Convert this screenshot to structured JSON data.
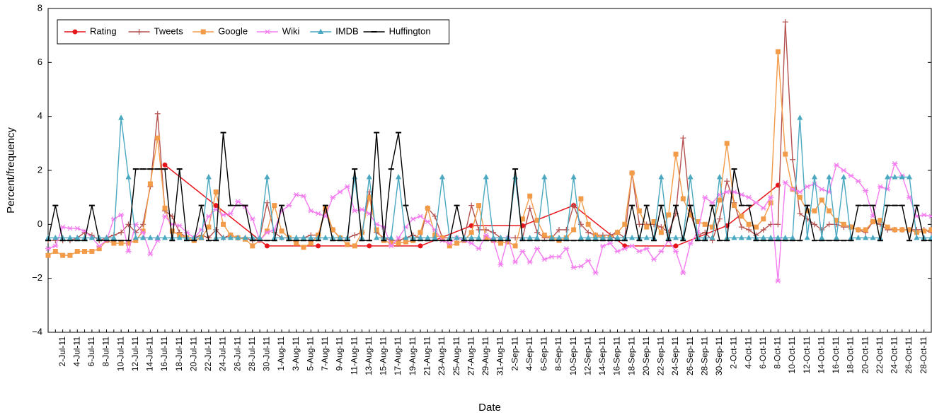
{
  "chart_data": {
    "type": "line",
    "x_label": "Date",
    "y_label": "Percent/frequency",
    "categories": [
      null,
      null,
      "2-Jul-11",
      null,
      "4-Jul-11",
      null,
      "6-Jul-11",
      null,
      "8-Jul-11",
      null,
      "10-Jul-11",
      null,
      "12-Jul-11",
      null,
      "14-Jul-11",
      null,
      "16-Jul-11",
      null,
      "18-Jul-11",
      null,
      "20-Jul-11",
      null,
      "22-Jul-11",
      null,
      "24-Jul-11",
      null,
      "26-Jul-11",
      null,
      "28-Jul-11",
      null,
      "30-Jul-11",
      null,
      "1-Aug-11",
      null,
      "3-Aug-11",
      null,
      "5-Aug-11",
      null,
      "7-Aug-11",
      null,
      "9-Aug-11",
      null,
      "11-Aug-11",
      null,
      "13-Aug-11",
      null,
      "15-Aug-11",
      null,
      "17-Aug-11",
      null,
      "19-Aug-11",
      null,
      "21-Aug-11",
      null,
      "23-Aug-11",
      null,
      "25-Aug-11",
      null,
      "27-Aug-11",
      null,
      "29-Aug-11",
      null,
      "31-Aug-11",
      null,
      "2-Sep-11",
      null,
      "4-Sep-11",
      null,
      "6-Sep-11",
      null,
      "8-Sep-11",
      null,
      "10-Sep-11",
      null,
      "12-Sep-11",
      null,
      "14-Sep-11",
      null,
      "16-Sep-11",
      null,
      "18-Sep-11",
      null,
      "20-Sep-11",
      null,
      "22-Sep-11",
      null,
      "24-Sep-11",
      null,
      "26-Sep-11",
      null,
      "28-Sep-11",
      null,
      "30-Sep-11",
      null,
      "2-Oct-11",
      null,
      "4-Oct-11",
      null,
      "6-Oct-11",
      null,
      "8-Oct-11",
      null,
      "10-Oct-11",
      null,
      "12-Oct-11",
      null,
      "14-Oct-11",
      null,
      "16-Oct-11",
      null,
      "18-Oct-11",
      null,
      "20-Oct-11",
      null,
      "22-Oct-11",
      null,
      "24-Oct-11",
      null,
      "26-Oct-11",
      null,
      "28-Oct-11",
      null
    ],
    "series": [
      {
        "name": "Rating",
        "color": "#e8141b",
        "marker": "circle",
        "x": [
          "16-Jul-11",
          "23-Jul-11",
          "30-Jul-11",
          "6-Aug-11",
          "13-Aug-11",
          "20-Aug-11",
          "27-Aug-11",
          "3-Sep-11",
          "10-Sep-11",
          "17-Sep-11",
          "24-Sep-11",
          "1-Oct-11",
          "8-Oct-11"
        ],
        "values": [
          2.2,
          0.7,
          -0.8,
          -0.8,
          -0.8,
          -0.8,
          -0.05,
          -0.05,
          0.7,
          -0.8,
          -0.8,
          -0.05,
          1.45
        ]
      },
      {
        "name": "Tweets",
        "color": "#b5524f",
        "marker": "plus",
        "values": [
          -0.6,
          -0.6,
          -0.6,
          -0.6,
          -0.5,
          -0.3,
          -0.4,
          -0.6,
          -0.5,
          -0.4,
          -0.3,
          0.0,
          -0.3,
          0.0,
          1.4,
          4.1,
          0.5,
          0.3,
          -0.3,
          -0.5,
          -0.5,
          -0.4,
          -0.5,
          -0.2,
          -0.5,
          -0.4,
          -0.5,
          -0.5,
          -0.6,
          -0.5,
          0.8,
          -0.3,
          -0.5,
          -0.5,
          -0.5,
          -0.5,
          -0.4,
          -0.4,
          0.5,
          -0.2,
          -0.5,
          -0.5,
          -0.4,
          -0.3,
          1.2,
          -0.3,
          -0.5,
          -0.6,
          -0.6,
          -0.5,
          -0.4,
          -0.5,
          0.6,
          0.3,
          -0.5,
          -0.5,
          -0.5,
          -0.5,
          0.7,
          -0.2,
          -0.2,
          -0.3,
          -0.5,
          -0.5,
          -0.5,
          -0.5,
          0.6,
          -0.3,
          -0.5,
          -0.5,
          -0.2,
          -0.2,
          0.7,
          0.0,
          -0.3,
          -0.4,
          -0.4,
          -0.4,
          -0.3,
          -0.5,
          1.9,
          0.0,
          0.0,
          0.0,
          -0.1,
          -0.3,
          0.4,
          3.2,
          0.4,
          -0.4,
          -0.3,
          -0.6,
          0.2,
          1.6,
          0.8,
          -0.1,
          -0.2,
          -0.4,
          -0.2,
          0.0,
          0.0,
          7.5,
          2.4,
          0.4,
          0.2,
          0.0,
          -0.2,
          0.0,
          0.0,
          -0.1,
          -0.1,
          -0.2,
          -0.3,
          0.1,
          0.0,
          -0.2,
          -0.2,
          -0.2,
          -0.2,
          -0.2,
          -0.2,
          -0.3
        ]
      },
      {
        "name": "Google",
        "color": "#f29b49",
        "marker": "square",
        "values": [
          -1.15,
          -1.0,
          -1.15,
          -1.15,
          -1.0,
          -1.0,
          -1.0,
          -0.9,
          -0.6,
          -0.7,
          -0.7,
          -0.7,
          -0.6,
          -0.25,
          1.5,
          3.2,
          0.6,
          -0.25,
          -0.4,
          -0.5,
          -0.6,
          -0.5,
          -0.1,
          1.2,
          0.0,
          -0.4,
          -0.5,
          -0.55,
          -0.8,
          -0.6,
          -0.25,
          0.7,
          -0.25,
          -0.5,
          -0.7,
          -0.85,
          -0.7,
          -0.4,
          0.6,
          -0.2,
          -0.5,
          -0.75,
          -0.8,
          -0.3,
          1.0,
          -0.2,
          -0.6,
          -0.7,
          -0.7,
          -0.65,
          -0.6,
          -0.3,
          0.6,
          -0.4,
          -0.5,
          -0.8,
          -0.7,
          -0.6,
          -0.3,
          0.7,
          -0.5,
          -0.6,
          -0.7,
          -0.65,
          -0.8,
          0.2,
          1.05,
          0.15,
          -0.4,
          -0.5,
          -0.6,
          -0.5,
          -0.2,
          0.95,
          0.0,
          -0.4,
          -0.5,
          -0.5,
          -0.3,
          0.0,
          1.9,
          0.5,
          -0.1,
          0.1,
          -0.3,
          0.35,
          2.6,
          0.95,
          0.35,
          0.1,
          0.0,
          -0.1,
          0.9,
          3.0,
          0.7,
          0.3,
          0.0,
          -0.1,
          0.2,
          0.8,
          6.4,
          2.6,
          1.3,
          1.0,
          0.5,
          0.5,
          0.9,
          0.5,
          0.15,
          0.0,
          -0.1,
          -0.2,
          -0.2,
          0.1,
          0.15,
          -0.1,
          -0.2,
          -0.2,
          -0.2,
          -0.3,
          -0.25,
          -0.2
        ]
      },
      {
        "name": "Wiki",
        "color": "#f47bf0",
        "marker": "star",
        "values": [
          -0.9,
          -0.8,
          -0.1,
          -0.15,
          -0.15,
          -0.25,
          -0.5,
          -0.8,
          -0.6,
          0.2,
          0.35,
          -1.0,
          0.0,
          -0.3,
          -1.1,
          -0.6,
          0.3,
          0.0,
          -0.05,
          -0.3,
          -0.5,
          -0.2,
          0.3,
          0.55,
          0.35,
          0.4,
          0.85,
          0.65,
          0.2,
          -0.6,
          -0.3,
          -0.2,
          0.5,
          0.7,
          1.1,
          1.05,
          0.5,
          0.4,
          0.3,
          1.0,
          1.2,
          1.4,
          0.5,
          0.55,
          0.4,
          0.0,
          -0.1,
          -0.8,
          -0.5,
          -0.1,
          0.2,
          0.3,
          0.1,
          -0.2,
          -0.6,
          -0.7,
          -0.5,
          -0.6,
          -0.7,
          -0.9,
          -0.4,
          -0.6,
          -1.5,
          -0.5,
          -1.4,
          -1.0,
          -1.4,
          -0.9,
          -1.3,
          -1.2,
          -1.2,
          -0.9,
          -1.6,
          -1.55,
          -1.35,
          -1.8,
          -0.8,
          -0.7,
          -1.0,
          -0.9,
          -0.8,
          -1.0,
          -0.9,
          -1.3,
          -1.0,
          -0.6,
          -1.0,
          -1.8,
          -0.7,
          -0.3,
          1.0,
          0.8,
          1.1,
          1.2,
          1.2,
          1.1,
          1.0,
          0.8,
          0.6,
          1.0,
          -2.1,
          1.55,
          1.3,
          1.2,
          1.4,
          1.5,
          1.3,
          1.2,
          2.2,
          2.0,
          1.8,
          1.6,
          1.25,
          0.3,
          1.4,
          1.3,
          2.25,
          1.8,
          1.0,
          0.3,
          0.35,
          0.3
        ]
      },
      {
        "name": "IMDB",
        "color": "#4aa8c0",
        "marker": "triangle",
        "values": [
          -0.5,
          -0.5,
          -0.5,
          -0.5,
          -0.5,
          -0.5,
          -0.5,
          -0.5,
          -0.5,
          -0.5,
          3.95,
          1.75,
          -0.5,
          -0.5,
          -0.5,
          -0.5,
          -0.5,
          -0.5,
          -0.5,
          -0.5,
          -0.5,
          -0.5,
          1.75,
          -0.5,
          -0.5,
          -0.5,
          -0.5,
          -0.5,
          -0.5,
          -0.5,
          1.75,
          -0.5,
          -0.5,
          -0.5,
          -0.5,
          -0.5,
          -0.5,
          -0.5,
          -0.5,
          -0.5,
          -0.5,
          -0.5,
          1.75,
          -0.5,
          1.75,
          -0.5,
          -0.5,
          -0.5,
          1.75,
          -0.5,
          -0.5,
          -0.5,
          -0.5,
          -0.5,
          1.75,
          -0.5,
          -0.5,
          -0.5,
          -0.5,
          -0.5,
          1.75,
          -0.5,
          -0.5,
          -0.5,
          1.75,
          -0.5,
          -0.5,
          -0.5,
          1.75,
          -0.5,
          -0.5,
          -0.5,
          1.75,
          -0.5,
          -0.5,
          -0.5,
          -0.5,
          -0.5,
          -0.5,
          -0.5,
          -0.5,
          -0.5,
          -0.5,
          -0.5,
          1.75,
          -0.5,
          -0.5,
          -0.5,
          1.75,
          -0.5,
          -0.5,
          -0.5,
          1.75,
          -0.5,
          -0.5,
          -0.5,
          -0.5,
          -0.5,
          -0.5,
          -0.5,
          -0.5,
          -0.5,
          -0.5,
          3.95,
          -0.5,
          1.75,
          -0.5,
          1.75,
          -0.5,
          1.75,
          -0.5,
          -0.5,
          -0.5,
          -0.5,
          -0.5,
          1.75,
          1.75,
          1.75,
          1.75,
          -0.5,
          -0.5,
          -0.5
        ]
      },
      {
        "name": "Huffington",
        "color": "#000000",
        "marker": "dash",
        "values": [
          -0.6,
          0.7,
          -0.6,
          -0.6,
          -0.6,
          -0.6,
          0.7,
          -0.6,
          -0.6,
          -0.6,
          -0.6,
          -0.6,
          2.05,
          2.05,
          2.05,
          2.05,
          2.05,
          -0.6,
          2.05,
          -0.6,
          -0.6,
          0.7,
          -0.6,
          -0.6,
          3.4,
          0.7,
          0.7,
          0.7,
          -0.6,
          -0.6,
          -0.6,
          -0.6,
          0.7,
          -0.6,
          -0.6,
          -0.6,
          -0.6,
          -0.6,
          0.7,
          -0.6,
          -0.6,
          -0.6,
          2.05,
          -0.6,
          -0.6,
          3.4,
          -0.6,
          2.05,
          3.4,
          0.7,
          -0.6,
          -0.6,
          -0.6,
          -0.6,
          -0.6,
          -0.6,
          0.7,
          -0.6,
          -0.6,
          -0.6,
          -0.6,
          -0.6,
          -0.6,
          -0.6,
          2.05,
          -0.6,
          -0.6,
          -0.6,
          -0.6,
          -0.6,
          -0.6,
          -0.6,
          -0.6,
          -0.6,
          -0.6,
          -0.6,
          -0.6,
          -0.6,
          -0.6,
          -0.6,
          0.7,
          -0.6,
          0.7,
          -0.6,
          0.7,
          -0.6,
          0.7,
          -0.6,
          0.7,
          -0.6,
          -0.6,
          0.7,
          -0.6,
          -0.6,
          2.05,
          0.7,
          0.7,
          -0.6,
          -0.6,
          -0.6,
          -0.6,
          -0.6,
          -0.6,
          -0.6,
          0.7,
          -0.6,
          -0.6,
          -0.6,
          -0.6,
          -0.6,
          -0.6,
          0.7,
          0.7,
          0.7,
          -0.6,
          0.7,
          0.7,
          0.7,
          -0.6,
          0.7,
          -0.6,
          -0.6
        ]
      }
    ],
    "ylim": [
      -4,
      8
    ],
    "yticks": [
      {
        "value": -4,
        "label": "−4"
      },
      {
        "value": -2,
        "label": "−2"
      },
      0,
      2,
      4,
      6,
      8
    ],
    "grid": false,
    "legend": "upper left"
  }
}
